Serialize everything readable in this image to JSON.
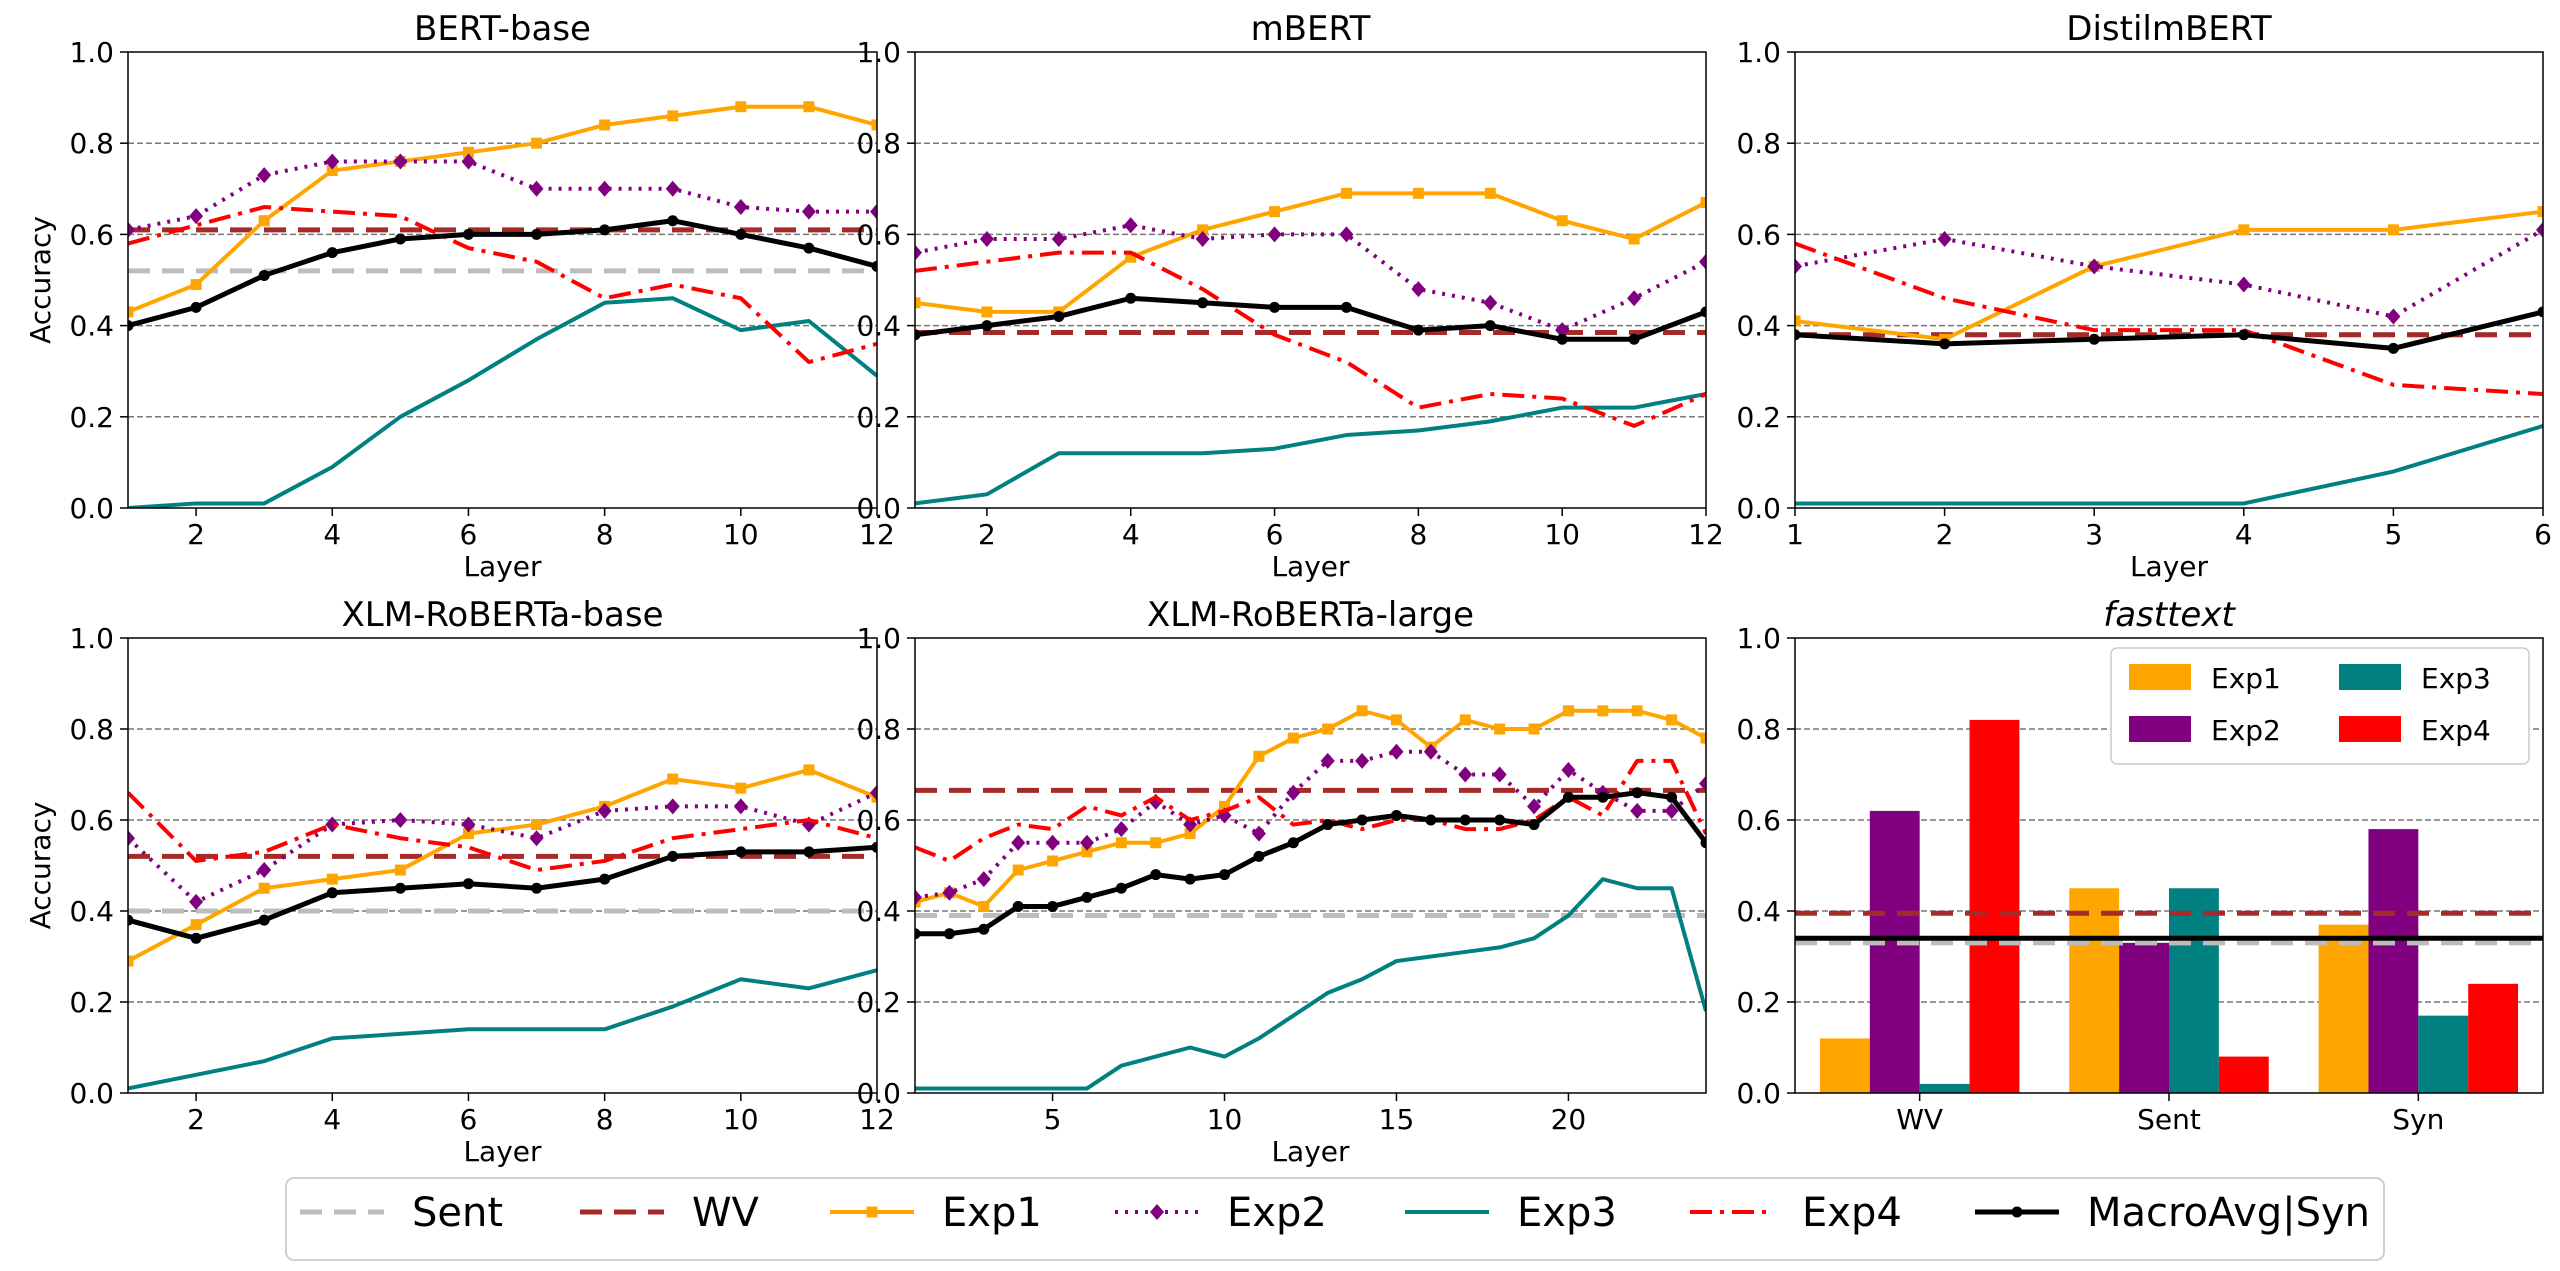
{
  "colors": {
    "Sent": "#bdbdbd",
    "WV": "#a52a2a",
    "Exp1": "#ffa500",
    "Exp2": "#800080",
    "Exp3": "#008080",
    "Exp4": "#ff0000",
    "MacroAvg": "#000000"
  },
  "legend": {
    "items": [
      {
        "key": "Sent",
        "label": "Sent"
      },
      {
        "key": "WV",
        "label": "WV"
      },
      {
        "key": "Exp1",
        "label": "Exp1"
      },
      {
        "key": "Exp2",
        "label": "Exp2"
      },
      {
        "key": "Exp3",
        "label": "Exp3"
      },
      {
        "key": "Exp4",
        "label": "Exp4"
      },
      {
        "key": "MacroAvg",
        "label": "MacroAvg|Syn"
      }
    ]
  },
  "chart_data": [
    {
      "type": "line",
      "title": "BERT-base",
      "xlabel": "Layer",
      "ylabel": "Accuracy",
      "xlim": [
        1,
        12
      ],
      "ylim": [
        0,
        1
      ],
      "xticks": [
        2,
        4,
        6,
        8,
        10,
        12
      ],
      "yticks": [
        0.0,
        0.2,
        0.4,
        0.6,
        0.8,
        1.0
      ],
      "ytick_labels": [
        "0.0",
        "0.2",
        "0.4",
        "0.6",
        "0.8",
        "1.0"
      ],
      "baselines": {
        "Sent": 0.52,
        "WV": 0.61
      },
      "x": [
        1,
        2,
        3,
        4,
        5,
        6,
        7,
        8,
        9,
        10,
        11,
        12
      ],
      "series": [
        {
          "name": "Exp1",
          "values": [
            0.43,
            0.49,
            0.63,
            0.74,
            0.76,
            0.78,
            0.8,
            0.84,
            0.86,
            0.88,
            0.88,
            0.84
          ]
        },
        {
          "name": "Exp2",
          "values": [
            0.61,
            0.64,
            0.73,
            0.76,
            0.76,
            0.76,
            0.7,
            0.7,
            0.7,
            0.66,
            0.65,
            0.65
          ]
        },
        {
          "name": "Exp3",
          "values": [
            0.0,
            0.01,
            0.01,
            0.09,
            0.2,
            0.28,
            0.37,
            0.45,
            0.46,
            0.39,
            0.41,
            0.29
          ]
        },
        {
          "name": "Exp4",
          "values": [
            0.58,
            0.62,
            0.66,
            0.65,
            0.64,
            0.57,
            0.54,
            0.46,
            0.49,
            0.46,
            0.32,
            0.36
          ]
        },
        {
          "name": "MacroAvg",
          "values": [
            0.4,
            0.44,
            0.51,
            0.56,
            0.59,
            0.6,
            0.6,
            0.61,
            0.63,
            0.6,
            0.57,
            0.53
          ]
        }
      ]
    },
    {
      "type": "line",
      "title": "mBERT",
      "xlabel": "Layer",
      "ylabel": "",
      "xlim": [
        1,
        12
      ],
      "ylim": [
        0,
        1
      ],
      "xticks": [
        2,
        4,
        6,
        8,
        10,
        12
      ],
      "yticks": [
        0.0,
        0.2,
        0.4,
        0.6,
        0.8,
        1.0
      ],
      "ytick_labels": [
        "0.0",
        "0.2",
        "0.4",
        "0.6",
        "0.8",
        "1.0"
      ],
      "baselines": {
        "Sent": 0.385,
        "WV": 0.385
      },
      "x": [
        1,
        2,
        3,
        4,
        5,
        6,
        7,
        8,
        9,
        10,
        11,
        12
      ],
      "series": [
        {
          "name": "Exp1",
          "values": [
            0.45,
            0.43,
            0.43,
            0.55,
            0.61,
            0.65,
            0.69,
            0.69,
            0.69,
            0.63,
            0.59,
            0.67
          ]
        },
        {
          "name": "Exp2",
          "values": [
            0.56,
            0.59,
            0.59,
            0.62,
            0.59,
            0.6,
            0.6,
            0.48,
            0.45,
            0.39,
            0.46,
            0.54
          ]
        },
        {
          "name": "Exp3",
          "values": [
            0.01,
            0.03,
            0.12,
            0.12,
            0.12,
            0.13,
            0.16,
            0.17,
            0.19,
            0.22,
            0.22,
            0.25
          ]
        },
        {
          "name": "Exp4",
          "values": [
            0.52,
            0.54,
            0.56,
            0.56,
            0.48,
            0.38,
            0.32,
            0.22,
            0.25,
            0.24,
            0.18,
            0.25
          ]
        },
        {
          "name": "MacroAvg",
          "values": [
            0.38,
            0.4,
            0.42,
            0.46,
            0.45,
            0.44,
            0.44,
            0.39,
            0.4,
            0.37,
            0.37,
            0.43
          ]
        }
      ]
    },
    {
      "type": "line",
      "title": "DistilmBERT",
      "xlabel": "Layer",
      "ylabel": "",
      "xlim": [
        1,
        6
      ],
      "ylim": [
        0,
        1
      ],
      "xticks": [
        1,
        2,
        3,
        4,
        5,
        6
      ],
      "yticks": [
        0.0,
        0.2,
        0.4,
        0.6,
        0.8,
        1.0
      ],
      "ytick_labels": [
        "0.0",
        "0.2",
        "0.4",
        "0.6",
        "0.8",
        "1.0"
      ],
      "baselines": {
        "Sent": 0.38,
        "WV": 0.38
      },
      "x": [
        1,
        2,
        3,
        4,
        5,
        6
      ],
      "series": [
        {
          "name": "Exp1",
          "values": [
            0.41,
            0.37,
            0.53,
            0.61,
            0.61,
            0.65
          ]
        },
        {
          "name": "Exp2",
          "values": [
            0.53,
            0.59,
            0.53,
            0.49,
            0.42,
            0.61
          ]
        },
        {
          "name": "Exp3",
          "values": [
            0.01,
            0.01,
            0.01,
            0.01,
            0.08,
            0.18
          ]
        },
        {
          "name": "Exp4",
          "values": [
            0.58,
            0.46,
            0.39,
            0.39,
            0.27,
            0.25
          ]
        },
        {
          "name": "MacroAvg",
          "values": [
            0.38,
            0.36,
            0.37,
            0.38,
            0.35,
            0.43
          ]
        }
      ]
    },
    {
      "type": "line",
      "title": "XLM-RoBERTa-base",
      "xlabel": "Layer",
      "ylabel": "Accuracy",
      "xlim": [
        1,
        12
      ],
      "ylim": [
        0,
        1
      ],
      "xticks": [
        2,
        4,
        6,
        8,
        10,
        12
      ],
      "yticks": [
        0.0,
        0.2,
        0.4,
        0.6,
        0.8,
        1.0
      ],
      "ytick_labels": [
        "0.0",
        "0.2",
        "0.4",
        "0.6",
        "0.8",
        "1.0"
      ],
      "baselines": {
        "Sent": 0.4,
        "WV": 0.52
      },
      "x": [
        1,
        2,
        3,
        4,
        5,
        6,
        7,
        8,
        9,
        10,
        11,
        12
      ],
      "series": [
        {
          "name": "Exp1",
          "values": [
            0.29,
            0.37,
            0.45,
            0.47,
            0.49,
            0.57,
            0.59,
            0.63,
            0.69,
            0.67,
            0.71,
            0.65
          ]
        },
        {
          "name": "Exp2",
          "values": [
            0.56,
            0.42,
            0.49,
            0.59,
            0.6,
            0.59,
            0.56,
            0.62,
            0.63,
            0.63,
            0.59,
            0.66
          ]
        },
        {
          "name": "Exp3",
          "values": [
            0.01,
            0.04,
            0.07,
            0.12,
            0.13,
            0.14,
            0.14,
            0.14,
            0.19,
            0.25,
            0.23,
            0.27
          ]
        },
        {
          "name": "Exp4",
          "values": [
            0.66,
            0.51,
            0.53,
            0.59,
            0.56,
            0.54,
            0.49,
            0.51,
            0.56,
            0.58,
            0.6,
            0.56
          ]
        },
        {
          "name": "MacroAvg",
          "values": [
            0.38,
            0.34,
            0.38,
            0.44,
            0.45,
            0.46,
            0.45,
            0.47,
            0.52,
            0.53,
            0.53,
            0.54
          ]
        }
      ]
    },
    {
      "type": "line",
      "title": "XLM-RoBERTa-large",
      "xlabel": "Layer",
      "ylabel": "",
      "xlim": [
        1,
        24
      ],
      "ylim": [
        0,
        1
      ],
      "xticks": [
        5,
        10,
        15,
        20
      ],
      "yticks": [
        0.0,
        0.2,
        0.4,
        0.6,
        0.8,
        1.0
      ],
      "ytick_labels": [
        "0.0",
        "0.2",
        "0.4",
        "0.6",
        "0.8",
        "1.0"
      ],
      "baselines": {
        "Sent": 0.39,
        "WV": 0.665
      },
      "x": [
        1,
        2,
        3,
        4,
        5,
        6,
        7,
        8,
        9,
        10,
        11,
        12,
        13,
        14,
        15,
        16,
        17,
        18,
        19,
        20,
        21,
        22,
        23,
        24
      ],
      "series": [
        {
          "name": "Exp1",
          "values": [
            0.42,
            0.44,
            0.41,
            0.49,
            0.51,
            0.53,
            0.55,
            0.55,
            0.57,
            0.63,
            0.74,
            0.78,
            0.8,
            0.84,
            0.82,
            0.76,
            0.82,
            0.8,
            0.8,
            0.84,
            0.84,
            0.84,
            0.82,
            0.78
          ]
        },
        {
          "name": "Exp2",
          "values": [
            0.43,
            0.44,
            0.47,
            0.55,
            0.55,
            0.55,
            0.58,
            0.64,
            0.59,
            0.61,
            0.57,
            0.66,
            0.73,
            0.73,
            0.75,
            0.75,
            0.7,
            0.7,
            0.63,
            0.71,
            0.66,
            0.62,
            0.62,
            0.68
          ]
        },
        {
          "name": "Exp3",
          "values": [
            0.01,
            0.01,
            0.01,
            0.01,
            0.01,
            0.01,
            0.06,
            0.08,
            0.1,
            0.08,
            0.12,
            0.17,
            0.22,
            0.25,
            0.29,
            0.3,
            0.31,
            0.32,
            0.34,
            0.39,
            0.47,
            0.45,
            0.45,
            0.18
          ]
        },
        {
          "name": "Exp4",
          "values": [
            0.54,
            0.51,
            0.56,
            0.59,
            0.58,
            0.63,
            0.61,
            0.65,
            0.6,
            0.62,
            0.65,
            0.59,
            0.6,
            0.58,
            0.6,
            0.6,
            0.58,
            0.58,
            0.6,
            0.65,
            0.61,
            0.73,
            0.73,
            0.57
          ]
        },
        {
          "name": "MacroAvg",
          "values": [
            0.35,
            0.35,
            0.36,
            0.41,
            0.41,
            0.43,
            0.45,
            0.48,
            0.47,
            0.48,
            0.52,
            0.55,
            0.59,
            0.6,
            0.61,
            0.6,
            0.6,
            0.6,
            0.59,
            0.65,
            0.65,
            0.66,
            0.65,
            0.55
          ]
        }
      ]
    },
    {
      "type": "bar",
      "title": "fasttext",
      "xlabel": "",
      "ylabel": "",
      "ylim": [
        0,
        1
      ],
      "yticks": [
        0.0,
        0.2,
        0.4,
        0.6,
        0.8,
        1.0
      ],
      "ytick_labels": [
        "0.0",
        "0.2",
        "0.4",
        "0.6",
        "0.8",
        "1.0"
      ],
      "categories": [
        "WV",
        "Sent",
        "Syn"
      ],
      "baselines": {
        "Sent": 0.33,
        "WV": 0.395,
        "MacroAvg": 0.34
      },
      "series": [
        {
          "name": "Exp1",
          "values": [
            0.12,
            0.45,
            0.37
          ]
        },
        {
          "name": "Exp2",
          "values": [
            0.62,
            0.33,
            0.58
          ]
        },
        {
          "name": "Exp3",
          "values": [
            0.02,
            0.45,
            0.17
          ]
        },
        {
          "name": "Exp4",
          "values": [
            0.82,
            0.08,
            0.24
          ]
        }
      ],
      "legend_entries": [
        {
          "key": "Exp1",
          "label": "Exp1"
        },
        {
          "key": "Exp3",
          "label": "Exp3"
        },
        {
          "key": "Exp2",
          "label": "Exp2"
        },
        {
          "key": "Exp4",
          "label": "Exp4"
        }
      ]
    }
  ]
}
